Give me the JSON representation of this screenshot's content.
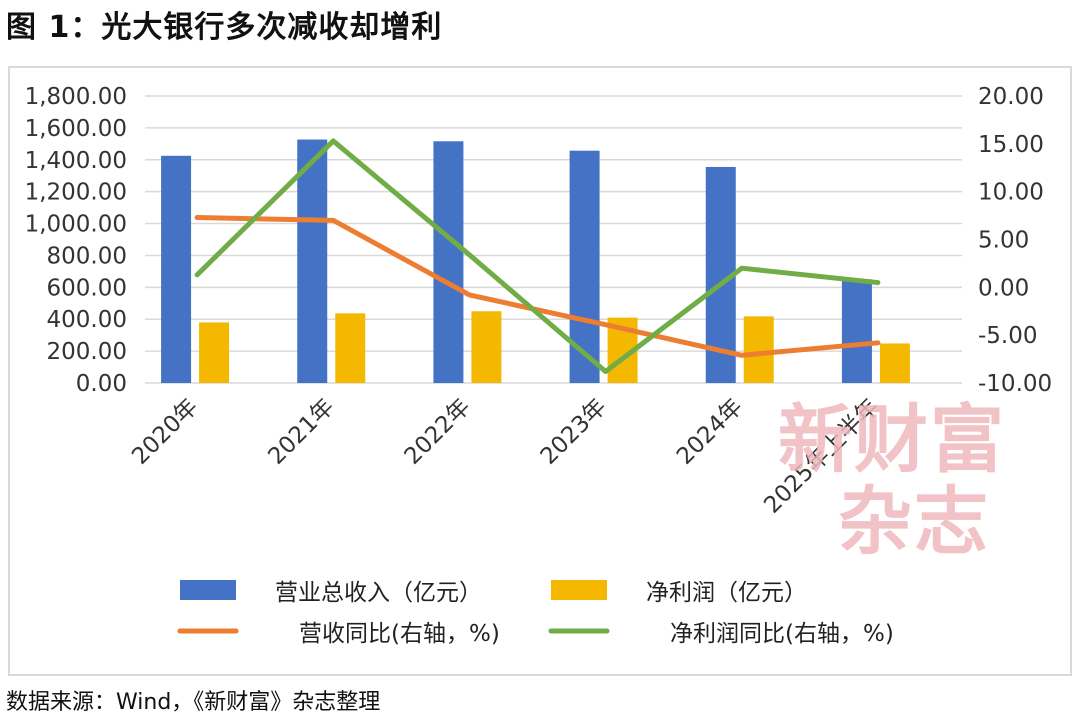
{
  "title": "图 1：光大银行多次减收却增利",
  "source": "数据来源：Wind，《新财富》杂志整理",
  "watermark": {
    "line1": "新财富",
    "line2": "杂志"
  },
  "colors": {
    "revenue": "#4472c4",
    "profit": "#f5b800",
    "revenue_yoy": "#ed7d31",
    "profit_yoy": "#70ad47",
    "grid": "#d9d9d9"
  },
  "chart_data": {
    "type": "bar",
    "categories": [
      "2020年",
      "2021年",
      "2022年",
      "2023年",
      "2024年",
      "2025年上半年"
    ],
    "left_axis": {
      "ylim": [
        0,
        1800
      ],
      "ticks": [
        "0.00",
        "200.00",
        "400.00",
        "600.00",
        "800.00",
        "1,000.00",
        "1,200.00",
        "1,400.00",
        "1,600.00",
        "1,800.00"
      ]
    },
    "right_axis": {
      "ylim": [
        -10,
        20
      ],
      "ticks": [
        "-10.00",
        "-5.00",
        "0.00",
        "5.00",
        "10.00",
        "15.00",
        "20.00"
      ]
    },
    "series": [
      {
        "name": "营业总收入（亿元）",
        "kind": "bar",
        "axis": "left",
        "color": "#4472c4",
        "values": [
          1425,
          1527,
          1516,
          1457,
          1355,
          650
        ]
      },
      {
        "name": "净利润（亿元）",
        "kind": "bar",
        "axis": "left",
        "color": "#f5b800",
        "values": [
          380,
          437,
          450,
          410,
          418,
          248
        ]
      },
      {
        "name": "营收同比(右轴，%)",
        "kind": "line",
        "axis": "right",
        "color": "#ed7d31",
        "values": [
          7.3,
          7.0,
          -0.8,
          -3.9,
          -7.1,
          -5.8
        ]
      },
      {
        "name": "净利润同比(右轴，%)",
        "kind": "line",
        "axis": "right",
        "color": "#70ad47",
        "values": [
          1.3,
          15.3,
          3.4,
          -8.8,
          2.0,
          0.5
        ]
      }
    ],
    "legend": "bottom",
    "grid": true
  }
}
